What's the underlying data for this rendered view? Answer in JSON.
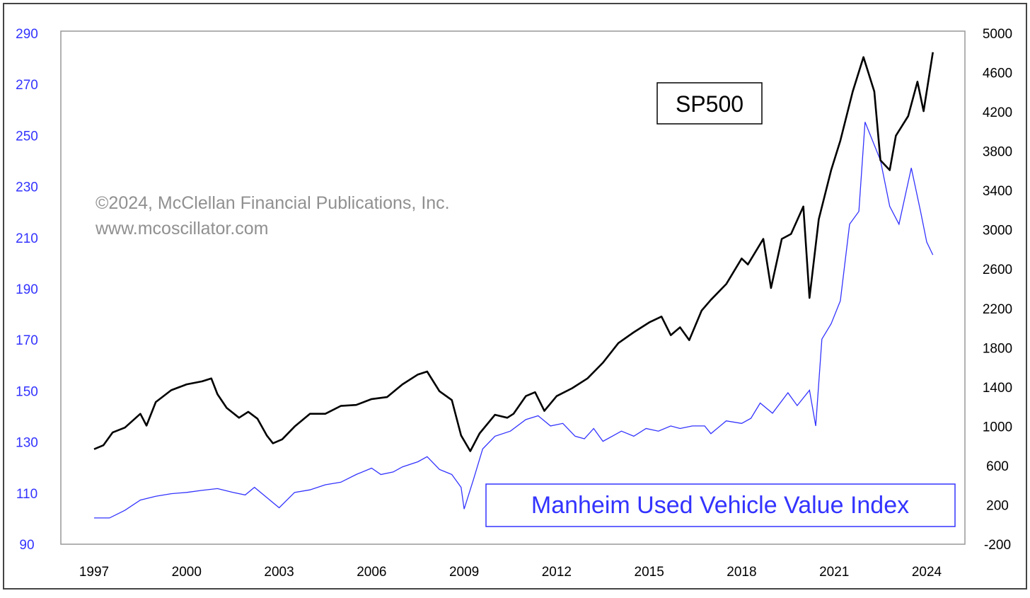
{
  "chart_data": {
    "type": "line",
    "watermark": {
      "line1": "©2024, McClellan Financial Publications, Inc.",
      "line2": "www.mcoscillator.com"
    },
    "x_ticks": [
      "1997",
      "2000",
      "2003",
      "2006",
      "2009",
      "2012",
      "2015",
      "2018",
      "2021",
      "2024"
    ],
    "x_range": [
      1997,
      2024
    ],
    "left_axis": {
      "min": 90,
      "max": 290,
      "ticks": [
        290,
        270,
        250,
        230,
        210,
        190,
        170,
        150,
        130,
        110,
        90
      ],
      "color": "#3333ff"
    },
    "right_axis": {
      "min": -200,
      "max": 5000,
      "ticks": [
        5000,
        4600,
        4200,
        3800,
        3400,
        3000,
        2600,
        2200,
        1800,
        1400,
        1000,
        600,
        200,
        -200
      ],
      "color": "#000000"
    },
    "grid": false,
    "series": [
      {
        "name": "SP500",
        "axis": "right",
        "color": "#000000",
        "points": [
          [
            1997.0,
            760
          ],
          [
            1997.3,
            800
          ],
          [
            1997.6,
            930
          ],
          [
            1998.0,
            980
          ],
          [
            1998.5,
            1120
          ],
          [
            1998.7,
            1000
          ],
          [
            1999.0,
            1240
          ],
          [
            1999.5,
            1360
          ],
          [
            2000.0,
            1420
          ],
          [
            2000.5,
            1450
          ],
          [
            2000.8,
            1480
          ],
          [
            2001.0,
            1320
          ],
          [
            2001.3,
            1180
          ],
          [
            2001.7,
            1080
          ],
          [
            2002.0,
            1140
          ],
          [
            2002.3,
            1070
          ],
          [
            2002.6,
            900
          ],
          [
            2002.8,
            820
          ],
          [
            2003.1,
            860
          ],
          [
            2003.5,
            990
          ],
          [
            2004.0,
            1120
          ],
          [
            2004.5,
            1120
          ],
          [
            2005.0,
            1200
          ],
          [
            2005.5,
            1210
          ],
          [
            2006.0,
            1270
          ],
          [
            2006.5,
            1290
          ],
          [
            2007.0,
            1420
          ],
          [
            2007.5,
            1520
          ],
          [
            2007.8,
            1550
          ],
          [
            2008.2,
            1350
          ],
          [
            2008.6,
            1260
          ],
          [
            2008.9,
            900
          ],
          [
            2009.2,
            740
          ],
          [
            2009.5,
            920
          ],
          [
            2010.0,
            1110
          ],
          [
            2010.4,
            1080
          ],
          [
            2010.6,
            1120
          ],
          [
            2011.0,
            1300
          ],
          [
            2011.3,
            1340
          ],
          [
            2011.6,
            1150
          ],
          [
            2012.0,
            1300
          ],
          [
            2012.5,
            1380
          ],
          [
            2013.0,
            1480
          ],
          [
            2013.5,
            1640
          ],
          [
            2014.0,
            1840
          ],
          [
            2014.5,
            1950
          ],
          [
            2015.0,
            2050
          ],
          [
            2015.4,
            2110
          ],
          [
            2015.7,
            1920
          ],
          [
            2016.0,
            2000
          ],
          [
            2016.3,
            1870
          ],
          [
            2016.7,
            2170
          ],
          [
            2017.0,
            2280
          ],
          [
            2017.5,
            2440
          ],
          [
            2018.0,
            2700
          ],
          [
            2018.2,
            2640
          ],
          [
            2018.7,
            2900
          ],
          [
            2018.95,
            2400
          ],
          [
            2019.3,
            2900
          ],
          [
            2019.6,
            2950
          ],
          [
            2020.0,
            3230
          ],
          [
            2020.2,
            2300
          ],
          [
            2020.5,
            3100
          ],
          [
            2020.9,
            3600
          ],
          [
            2021.2,
            3900
          ],
          [
            2021.6,
            4400
          ],
          [
            2021.95,
            4750
          ],
          [
            2022.3,
            4400
          ],
          [
            2022.5,
            3700
          ],
          [
            2022.8,
            3600
          ],
          [
            2023.0,
            3950
          ],
          [
            2023.4,
            4150
          ],
          [
            2023.7,
            4500
          ],
          [
            2023.9,
            4200
          ],
          [
            2024.2,
            4800
          ]
        ]
      },
      {
        "name": "Manheim Used Vehicle Value Index",
        "axis": "left",
        "color": "#3333ff",
        "points": [
          [
            1997.0,
            100
          ],
          [
            1997.5,
            100
          ],
          [
            1998.0,
            103
          ],
          [
            1998.5,
            107
          ],
          [
            1999.0,
            108.5
          ],
          [
            1999.5,
            109.5
          ],
          [
            2000.0,
            110
          ],
          [
            2000.5,
            110.8
          ],
          [
            2001.0,
            111.5
          ],
          [
            2001.5,
            110
          ],
          [
            2001.9,
            109
          ],
          [
            2002.2,
            112
          ],
          [
            2002.6,
            108
          ],
          [
            2003.0,
            104
          ],
          [
            2003.5,
            110
          ],
          [
            2004.0,
            111
          ],
          [
            2004.5,
            113
          ],
          [
            2005.0,
            114
          ],
          [
            2005.5,
            117
          ],
          [
            2006.0,
            119.5
          ],
          [
            2006.3,
            117
          ],
          [
            2006.7,
            118
          ],
          [
            2007.0,
            120
          ],
          [
            2007.5,
            122
          ],
          [
            2007.8,
            124
          ],
          [
            2008.2,
            119
          ],
          [
            2008.6,
            117
          ],
          [
            2008.9,
            112
          ],
          [
            2009.0,
            103.5
          ],
          [
            2009.3,
            115
          ],
          [
            2009.6,
            127
          ],
          [
            2010.0,
            132
          ],
          [
            2010.5,
            134
          ],
          [
            2011.0,
            138.5
          ],
          [
            2011.4,
            140
          ],
          [
            2011.8,
            136
          ],
          [
            2012.2,
            137
          ],
          [
            2012.6,
            132
          ],
          [
            2012.9,
            131
          ],
          [
            2013.2,
            135
          ],
          [
            2013.5,
            130
          ],
          [
            2013.8,
            132
          ],
          [
            2014.1,
            134
          ],
          [
            2014.5,
            132
          ],
          [
            2014.9,
            135
          ],
          [
            2015.3,
            134
          ],
          [
            2015.7,
            136
          ],
          [
            2016.0,
            135
          ],
          [
            2016.4,
            136
          ],
          [
            2016.8,
            136
          ],
          [
            2017.0,
            133
          ],
          [
            2017.5,
            138
          ],
          [
            2018.0,
            137
          ],
          [
            2018.3,
            139
          ],
          [
            2018.6,
            145
          ],
          [
            2019.0,
            141
          ],
          [
            2019.5,
            149
          ],
          [
            2019.8,
            144
          ],
          [
            2020.2,
            150
          ],
          [
            2020.4,
            136
          ],
          [
            2020.6,
            170
          ],
          [
            2020.9,
            176
          ],
          [
            2021.2,
            185
          ],
          [
            2021.5,
            215
          ],
          [
            2021.8,
            220
          ],
          [
            2022.0,
            255
          ],
          [
            2022.5,
            240
          ],
          [
            2022.8,
            222
          ],
          [
            2023.1,
            215
          ],
          [
            2023.5,
            237
          ],
          [
            2023.8,
            220
          ],
          [
            2024.0,
            208
          ],
          [
            2024.2,
            203
          ]
        ]
      }
    ],
    "annotations": [
      {
        "label": "SP500",
        "color": "#000000"
      },
      {
        "label": "Manheim Used Vehicle Value Index",
        "color": "#3333ff"
      }
    ]
  }
}
